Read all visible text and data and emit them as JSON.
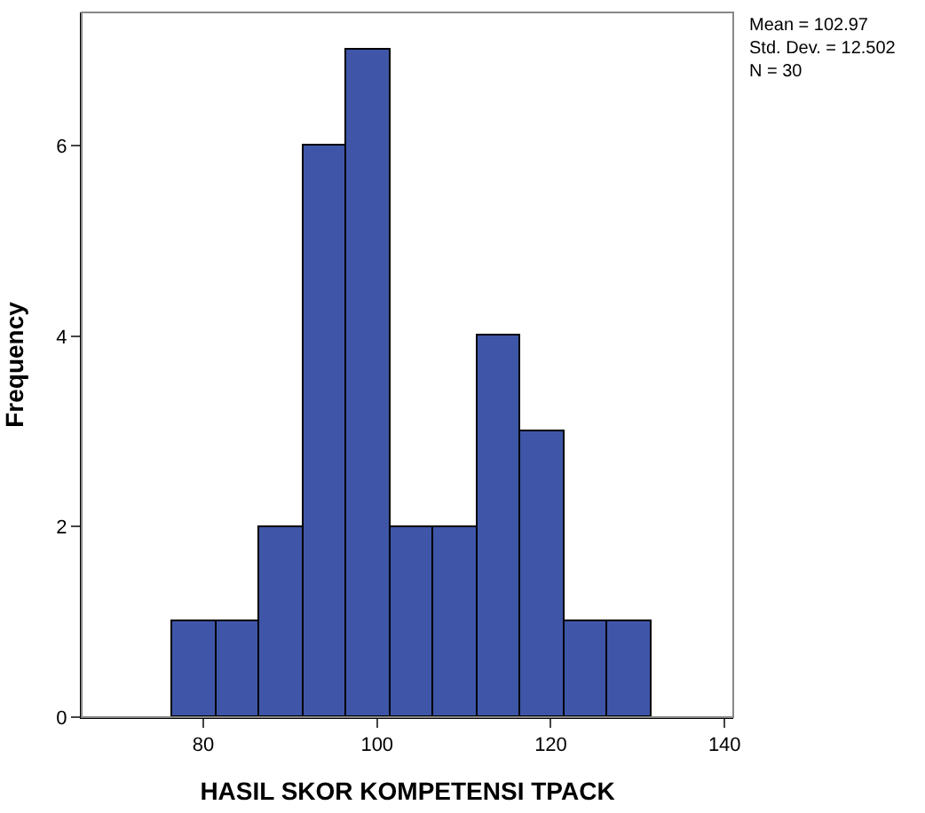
{
  "chart_data": {
    "type": "histogram",
    "xlabel": "HASIL SKOR KOMPETENSI TPACK",
    "ylabel": "Frequency",
    "bins": [
      76.5,
      81.5,
      86.5,
      91.5,
      96.5,
      101.5,
      106.5,
      111.5,
      116.5,
      121.5,
      126.5,
      131.5
    ],
    "values": [
      1,
      1,
      2,
      6,
      7,
      2,
      2,
      4,
      3,
      1,
      1
    ],
    "color": "#3f56a8",
    "xlim": [
      66,
      141
    ],
    "xticks": [
      80,
      100,
      120,
      140
    ],
    "ylim": [
      0,
      7.4
    ],
    "yticks": [
      0,
      2,
      4,
      6
    ],
    "annotations": [
      "Mean = 102.97\nStd. Dev. = 12.502\nN = 30"
    ]
  }
}
